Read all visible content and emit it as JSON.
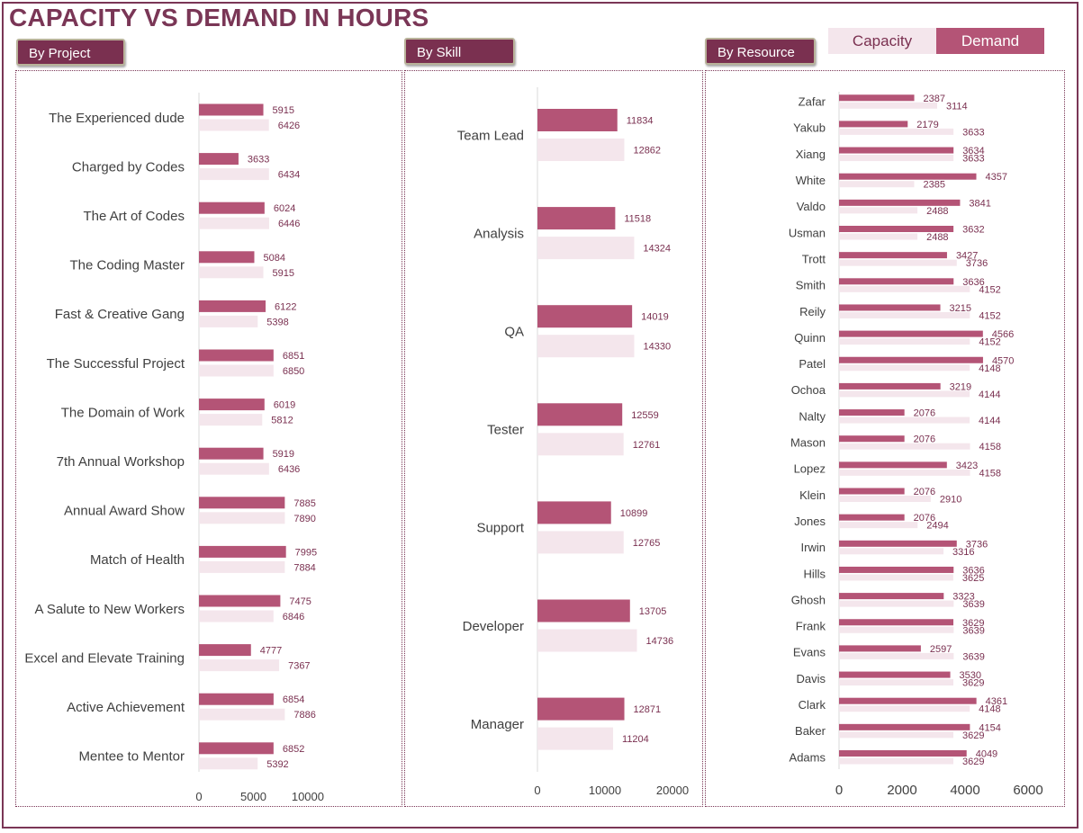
{
  "title": "CAPACITY VS DEMAND IN HOURS",
  "buttons": {
    "project": "By Project",
    "skill": "By Skill",
    "resource": "By Resource"
  },
  "legend": {
    "capacity": "Capacity",
    "demand": "Demand"
  },
  "colors": {
    "demand": "#b45476",
    "capacity": "#f4e6ec",
    "title": "#7a3656",
    "button": "#7a3050",
    "label": "#7a3050"
  },
  "chart_data": [
    {
      "type": "bar",
      "orientation": "horizontal",
      "categories": [
        "The Experienced dude",
        "Charged by Codes",
        "The Art of Codes",
        "The Coding Master",
        "Fast & Creative Gang",
        "The Successful Project",
        "The Domain of Work",
        "7th Annual Workshop",
        "Annual Award Show",
        "Match of Health",
        "A Salute to New Workers",
        "Excel and Elevate Training",
        "Active Achievement",
        "Mentee to Mentor"
      ],
      "series": [
        {
          "name": "Demand",
          "values": [
            5915,
            3633,
            6024,
            5084,
            6122,
            6851,
            6019,
            5919,
            7885,
            7995,
            7475,
            4777,
            6854,
            6852
          ]
        },
        {
          "name": "Capacity",
          "values": [
            6426,
            6434,
            6446,
            5915,
            5398,
            6850,
            5812,
            6436,
            7890,
            7884,
            6846,
            7367,
            7886,
            5392
          ]
        }
      ],
      "xlim": [
        0,
        14000
      ],
      "xticks": [
        "0",
        "5000",
        "10000"
      ],
      "grid": false
    },
    {
      "type": "bar",
      "orientation": "horizontal",
      "categories": [
        "Team Lead",
        "Analysis",
        "QA",
        "Tester",
        "Support",
        "Developer",
        "Manager"
      ],
      "series": [
        {
          "name": "Demand",
          "values": [
            11834,
            11518,
            14019,
            12559,
            10899,
            13705,
            12871
          ]
        },
        {
          "name": "Capacity",
          "values": [
            12862,
            14324,
            14330,
            12761,
            12765,
            14736,
            11204
          ]
        }
      ],
      "xlim": [
        0,
        25000
      ],
      "xticks": [
        "0",
        "10000",
        "20000"
      ],
      "grid": false
    },
    {
      "type": "bar",
      "orientation": "horizontal",
      "categories": [
        "Zafar",
        "Yakub",
        "Xiang",
        "White",
        "Valdo",
        "Usman",
        "Trott",
        "Smith",
        "Reily",
        "Quinn",
        "Patel",
        "Ochoa",
        "Nalty",
        "Mason",
        "Lopez",
        "Klein",
        "Jones",
        "Irwin",
        "Hills",
        "Ghosh",
        "Frank",
        "Evans",
        "Davis",
        "Clark",
        "Baker",
        "Adams"
      ],
      "series": [
        {
          "name": "Demand",
          "values": [
            2387,
            2179,
            3634,
            4357,
            3841,
            3632,
            3427,
            3636,
            3215,
            4566,
            4570,
            3219,
            2076,
            2076,
            3423,
            2076,
            2076,
            3736,
            3636,
            3323,
            3629,
            2597,
            3530,
            4361,
            4154,
            4049
          ]
        },
        {
          "name": "Capacity",
          "values": [
            3114,
            3633,
            3633,
            2385,
            2488,
            2488,
            3736,
            4152,
            4152,
            4152,
            4148,
            4144,
            4144,
            4158,
            4158,
            2910,
            2494,
            3316,
            3625,
            3639,
            3639,
            3639,
            3629,
            4148,
            3629,
            3629
          ]
        }
      ],
      "xlim": [
        0,
        6000
      ],
      "xticks": [
        "0",
        "2000",
        "4000",
        "6000"
      ],
      "grid": false
    }
  ]
}
